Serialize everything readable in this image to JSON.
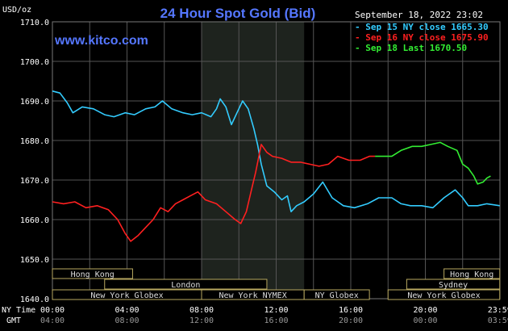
{
  "chart_data": {
    "type": "line",
    "title": "24 Hour Spot Gold (Bid)",
    "y_unit_label": "USD/oz",
    "timestamp": "September 18, 2022 23:02",
    "watermark": "www.kitco.com",
    "ylim": [
      1640,
      1710
    ],
    "y_ticks": [
      "1710.0",
      "1700.0",
      "1690.0",
      "1680.0",
      "1670.0",
      "1660.0",
      "1650.0",
      "1640.0"
    ],
    "x_row_label_ny": "NY Time",
    "x_row_label_gmt": "GMT",
    "x_ticks_ny": [
      "00:00",
      "04:00",
      "08:00",
      "12:00",
      "16:00",
      "20:00",
      "23:59"
    ],
    "x_ticks_gmt": [
      "04:00",
      "08:00",
      "12:00",
      "16:00",
      "20:00",
      "00:00",
      "03:59"
    ],
    "xlim_hours": [
      0,
      24
    ],
    "shaded_session_hours": [
      8,
      13.5
    ],
    "series": [
      {
        "name": "Sep 15 NY close 1665.30",
        "color": "#33ccff",
        "points": [
          [
            0,
            1692.5
          ],
          [
            0.4,
            1692
          ],
          [
            0.8,
            1689.5
          ],
          [
            1.1,
            1687
          ],
          [
            1.6,
            1688.5
          ],
          [
            2.2,
            1688
          ],
          [
            2.8,
            1686.5
          ],
          [
            3.3,
            1686
          ],
          [
            3.9,
            1687
          ],
          [
            4.4,
            1686.5
          ],
          [
            5,
            1688
          ],
          [
            5.5,
            1688.5
          ],
          [
            5.9,
            1690
          ],
          [
            6.4,
            1688
          ],
          [
            7,
            1687
          ],
          [
            7.5,
            1686.5
          ],
          [
            8,
            1687
          ],
          [
            8.5,
            1686
          ],
          [
            8.8,
            1688
          ],
          [
            9.0,
            1690.5
          ],
          [
            9.3,
            1688.5
          ],
          [
            9.6,
            1684
          ],
          [
            9.9,
            1687
          ],
          [
            10.2,
            1690
          ],
          [
            10.5,
            1688
          ],
          [
            10.8,
            1683
          ],
          [
            11.0,
            1679
          ],
          [
            11.2,
            1674
          ],
          [
            11.5,
            1668.5
          ],
          [
            11.9,
            1667
          ],
          [
            12.3,
            1665
          ],
          [
            12.6,
            1666
          ],
          [
            12.8,
            1662
          ],
          [
            13.1,
            1663.5
          ],
          [
            13.5,
            1664.5
          ],
          [
            14.0,
            1666.5
          ],
          [
            14.5,
            1669.5
          ],
          [
            15.0,
            1665.5
          ],
          [
            15.6,
            1663.5
          ],
          [
            16.2,
            1663
          ],
          [
            16.9,
            1664
          ],
          [
            17.5,
            1665.5
          ],
          [
            18.2,
            1665.5
          ],
          [
            18.7,
            1664
          ],
          [
            19.2,
            1663.5
          ],
          [
            19.8,
            1663.5
          ],
          [
            20.4,
            1663
          ],
          [
            21.0,
            1665.5
          ],
          [
            21.6,
            1667.5
          ],
          [
            22.0,
            1665.5
          ],
          [
            22.3,
            1663.5
          ],
          [
            22.8,
            1663.5
          ],
          [
            23.3,
            1664
          ],
          [
            23.99,
            1663.5
          ]
        ]
      },
      {
        "name": "Sep 16 NY close 1675.90",
        "color": "#ff2020",
        "points": [
          [
            0,
            1664.5
          ],
          [
            0.6,
            1664
          ],
          [
            1.2,
            1664.5
          ],
          [
            1.8,
            1663
          ],
          [
            2.4,
            1663.5
          ],
          [
            3.0,
            1662.5
          ],
          [
            3.5,
            1660
          ],
          [
            3.9,
            1656.5
          ],
          [
            4.2,
            1654.5
          ],
          [
            4.6,
            1656
          ],
          [
            5.0,
            1658
          ],
          [
            5.4,
            1660
          ],
          [
            5.8,
            1663
          ],
          [
            6.2,
            1662
          ],
          [
            6.6,
            1664
          ],
          [
            7.0,
            1665
          ],
          [
            7.4,
            1666
          ],
          [
            7.8,
            1667
          ],
          [
            8.2,
            1665
          ],
          [
            8.8,
            1664
          ],
          [
            9.3,
            1662
          ],
          [
            9.8,
            1660
          ],
          [
            10.1,
            1659
          ],
          [
            10.4,
            1662
          ],
          [
            10.7,
            1668
          ],
          [
            10.9,
            1672
          ],
          [
            11.2,
            1679
          ],
          [
            11.5,
            1677
          ],
          [
            11.8,
            1676
          ],
          [
            12.3,
            1675.5
          ],
          [
            12.8,
            1674.5
          ],
          [
            13.3,
            1674.5
          ],
          [
            13.8,
            1674
          ],
          [
            14.3,
            1673.5
          ],
          [
            14.8,
            1674
          ],
          [
            15.3,
            1676
          ],
          [
            15.9,
            1675
          ],
          [
            16.5,
            1675
          ],
          [
            17.0,
            1676
          ],
          [
            17.3,
            1676
          ]
        ]
      },
      {
        "name": "Sep 18 Last 1670.50",
        "color": "#33ee33",
        "points": [
          [
            17.3,
            1676
          ],
          [
            18.2,
            1676
          ],
          [
            18.7,
            1677.5
          ],
          [
            19.3,
            1678.5
          ],
          [
            19.8,
            1678.5
          ],
          [
            20.3,
            1679
          ],
          [
            20.8,
            1679.5
          ],
          [
            21.2,
            1678.5
          ],
          [
            21.7,
            1677.5
          ],
          [
            22.0,
            1674
          ],
          [
            22.3,
            1673
          ],
          [
            22.6,
            1671
          ],
          [
            22.8,
            1669
          ],
          [
            23.1,
            1669.5
          ],
          [
            23.3,
            1670.5
          ],
          [
            23.5,
            1671
          ]
        ]
      }
    ],
    "sessions": [
      {
        "label": "Hong Kong",
        "row": 0,
        "start": 0,
        "end": 4.3
      },
      {
        "label": "Hong Kong",
        "row": 0,
        "start": 21.0,
        "end": 23.99
      },
      {
        "label": "London",
        "row": 1,
        "start": 2.8,
        "end": 11.5
      },
      {
        "label": "Sydney",
        "row": 1,
        "start": 19.0,
        "end": 23.99
      },
      {
        "label": "New York Globex",
        "row": 2,
        "start": 0,
        "end": 8.0
      },
      {
        "label": "New York NYMEX",
        "row": 2,
        "start": 8.0,
        "end": 13.5
      },
      {
        "label": "NY Globex",
        "row": 2,
        "start": 13.5,
        "end": 17.0
      },
      {
        "label": "New York Globex",
        "row": 2,
        "start": 18.0,
        "end": 23.99
      }
    ]
  }
}
